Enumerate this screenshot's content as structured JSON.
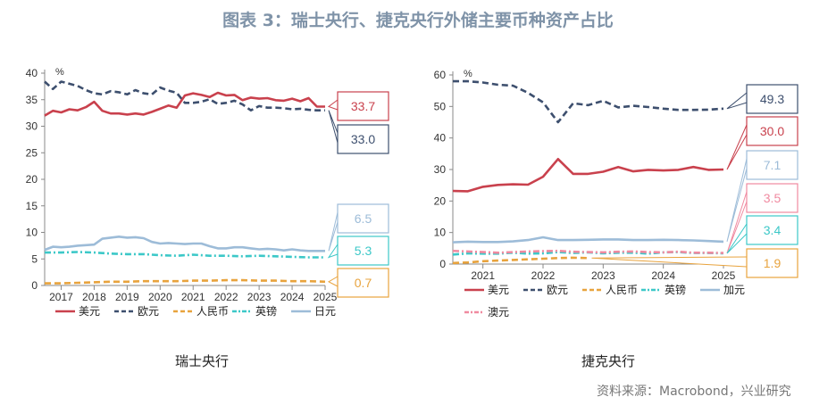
{
  "page": {
    "title": "图表 3：瑞士央行、捷克央行外储主要币种资产占比",
    "source": "资料来源：Macrobond，兴业研究"
  },
  "chart_data": [
    {
      "type": "line",
      "panel_title": "瑞士央行",
      "unit": "%",
      "ylim": [
        0,
        40
      ],
      "yticks": [
        0,
        5,
        10,
        15,
        20,
        25,
        30,
        35,
        40
      ],
      "xlim": [
        2016.5,
        2025.0
      ],
      "xticks": [
        "2017",
        "2018",
        "2019",
        "2020",
        "2021",
        "2022",
        "2023",
        "2024",
        "2025"
      ],
      "series": [
        {
          "name": "美元",
          "color": "#c9414d",
          "style": "solid",
          "x": [
            2016.5,
            2016.75,
            2017.0,
            2017.25,
            2017.5,
            2017.75,
            2018.0,
            2018.25,
            2018.5,
            2018.75,
            2019.0,
            2019.25,
            2019.5,
            2019.75,
            2020.0,
            2020.25,
            2020.5,
            2020.75,
            2021.0,
            2021.25,
            2021.5,
            2021.75,
            2022.0,
            2022.25,
            2022.5,
            2022.75,
            2023.0,
            2023.25,
            2023.5,
            2023.75,
            2024.0,
            2024.25,
            2024.5,
            2024.75,
            2025.0
          ],
          "y": [
            32.0,
            32.9,
            32.6,
            33.2,
            33.0,
            33.6,
            34.6,
            32.9,
            32.4,
            32.4,
            32.2,
            32.4,
            32.2,
            32.7,
            33.3,
            33.9,
            33.5,
            35.8,
            36.2,
            35.9,
            35.5,
            36.3,
            35.8,
            35.9,
            34.9,
            35.4,
            35.2,
            35.3,
            34.9,
            34.8,
            35.2,
            34.7,
            35.3,
            33.7,
            33.7
          ]
        },
        {
          "name": "欧元",
          "color": "#3d4f6e",
          "style": "dash",
          "x": [
            2016.5,
            2016.75,
            2017.0,
            2017.25,
            2017.5,
            2017.75,
            2018.0,
            2018.25,
            2018.5,
            2018.75,
            2019.0,
            2019.25,
            2019.5,
            2019.75,
            2020.0,
            2020.25,
            2020.5,
            2020.75,
            2021.0,
            2021.25,
            2021.5,
            2021.75,
            2022.0,
            2022.25,
            2022.5,
            2022.75,
            2023.0,
            2023.25,
            2023.5,
            2023.75,
            2024.0,
            2024.25,
            2024.5,
            2024.75,
            2025.0
          ],
          "y": [
            38.4,
            37.0,
            38.4,
            38.0,
            37.6,
            36.8,
            36.2,
            36.0,
            36.6,
            36.4,
            36.0,
            36.8,
            36.2,
            36.0,
            37.3,
            36.7,
            36.3,
            34.4,
            34.4,
            34.6,
            35.1,
            34.2,
            34.4,
            34.8,
            34.1,
            33.0,
            33.8,
            33.5,
            33.5,
            33.4,
            33.2,
            33.3,
            33.1,
            33.0,
            33.0
          ]
        },
        {
          "name": "人民币",
          "color": "#e8a33d",
          "style": "dash",
          "x": [
            2016.5,
            2017.0,
            2017.5,
            2018.0,
            2018.5,
            2019.0,
            2019.5,
            2020.0,
            2020.5,
            2021.0,
            2021.5,
            2022.0,
            2022.5,
            2023.0,
            2023.5,
            2024.0,
            2024.5,
            2025.0
          ],
          "y": [
            0.4,
            0.4,
            0.5,
            0.6,
            0.7,
            0.7,
            0.8,
            0.8,
            0.8,
            0.9,
            0.9,
            1.0,
            1.0,
            0.9,
            0.9,
            0.8,
            0.8,
            0.7
          ]
        },
        {
          "name": "英镑",
          "color": "#3cc8c8",
          "style": "dashdot",
          "x": [
            2016.5,
            2017.0,
            2017.5,
            2018.0,
            2018.5,
            2019.0,
            2019.5,
            2020.0,
            2020.5,
            2021.0,
            2021.5,
            2022.0,
            2022.5,
            2023.0,
            2023.5,
            2024.0,
            2024.5,
            2025.0
          ],
          "y": [
            6.2,
            6.2,
            6.3,
            6.2,
            6.0,
            5.9,
            5.9,
            5.7,
            5.6,
            5.8,
            5.6,
            5.6,
            5.5,
            5.6,
            5.5,
            5.4,
            5.3,
            5.3
          ]
        },
        {
          "name": "日元",
          "color": "#9dbcd8",
          "style": "solid",
          "x": [
            2016.5,
            2016.75,
            2017.0,
            2017.25,
            2017.5,
            2017.75,
            2018.0,
            2018.25,
            2018.5,
            2018.75,
            2019.0,
            2019.25,
            2019.5,
            2019.75,
            2020.0,
            2020.25,
            2020.5,
            2020.75,
            2021.0,
            2021.25,
            2021.5,
            2021.75,
            2022.0,
            2022.25,
            2022.5,
            2022.75,
            2023.0,
            2023.25,
            2023.5,
            2023.75,
            2024.0,
            2024.25,
            2024.5,
            2024.75,
            2025.0
          ],
          "y": [
            6.7,
            7.3,
            7.2,
            7.3,
            7.5,
            7.6,
            7.7,
            8.8,
            9.0,
            9.2,
            9.0,
            9.1,
            8.9,
            8.2,
            7.9,
            8.0,
            7.9,
            7.8,
            7.9,
            7.9,
            7.4,
            7.0,
            7.0,
            7.2,
            7.2,
            7.0,
            6.8,
            6.9,
            6.8,
            6.6,
            6.8,
            6.6,
            6.5,
            6.5,
            6.5
          ]
        }
      ],
      "end_labels": [
        {
          "series": "美元",
          "value": "33.7"
        },
        {
          "series": "欧元",
          "value": "33.0"
        },
        {
          "series": "日元",
          "value": "6.5"
        },
        {
          "series": "英镑",
          "value": "5.3"
        },
        {
          "series": "人民币",
          "value": "0.7"
        }
      ]
    },
    {
      "type": "line",
      "panel_title": "捷克央行",
      "unit": "%",
      "ylim": [
        0,
        60
      ],
      "yticks": [
        0,
        10,
        20,
        30,
        40,
        50,
        60
      ],
      "xlim": [
        2020.5,
        2025.0
      ],
      "xticks": [
        "2021",
        "2022",
        "2023",
        "2024",
        "2025"
      ],
      "series": [
        {
          "name": "美元",
          "color": "#c9414d",
          "style": "solid",
          "x": [
            2020.5,
            2020.75,
            2021.0,
            2021.25,
            2021.5,
            2021.75,
            2022.0,
            2022.25,
            2022.5,
            2022.75,
            2023.0,
            2023.25,
            2023.5,
            2023.75,
            2024.0,
            2024.25,
            2024.5,
            2024.75,
            2025.0
          ],
          "y": [
            23.2,
            23.1,
            24.5,
            25.1,
            25.3,
            25.2,
            27.7,
            33.3,
            28.6,
            28.6,
            29.3,
            30.8,
            29.4,
            29.9,
            29.7,
            29.9,
            30.8,
            29.9,
            30.0
          ]
        },
        {
          "name": "欧元",
          "color": "#3d4f6e",
          "style": "dash",
          "x": [
            2020.5,
            2020.75,
            2021.0,
            2021.25,
            2021.5,
            2021.75,
            2022.0,
            2022.25,
            2022.5,
            2022.75,
            2023.0,
            2023.25,
            2023.5,
            2023.75,
            2024.0,
            2024.25,
            2024.5,
            2024.75,
            2025.0
          ],
          "y": [
            58.0,
            58.0,
            57.6,
            56.9,
            56.6,
            54.3,
            51.3,
            45.0,
            51.0,
            50.4,
            51.8,
            49.7,
            50.2,
            49.8,
            49.3,
            48.9,
            48.9,
            49.0,
            49.3
          ]
        },
        {
          "name": "人民币",
          "color": "#e8a33d",
          "style": "dash",
          "x": [
            2020.5,
            2020.75,
            2021.0,
            2021.25,
            2021.5,
            2021.75,
            2022.0,
            2022.25,
            2022.5,
            2022.75
          ],
          "y": [
            0.3,
            0.5,
            0.9,
            1.1,
            1.3,
            1.5,
            1.7,
            1.9,
            2.0,
            1.9
          ]
        },
        {
          "name": "英镑",
          "color": "#3cc8c8",
          "style": "dashdot",
          "x": [
            2020.5,
            2020.75,
            2021.0,
            2021.25,
            2021.5,
            2021.75,
            2022.0,
            2022.25,
            2022.5,
            2022.75,
            2023.0,
            2023.25,
            2023.5,
            2023.75,
            2024.0,
            2024.25,
            2024.5,
            2024.75,
            2025.0
          ],
          "y": [
            3.0,
            3.4,
            3.3,
            3.3,
            3.6,
            3.3,
            3.4,
            3.8,
            3.5,
            3.7,
            3.4,
            3.6,
            3.6,
            3.3,
            3.7,
            3.8,
            3.5,
            3.5,
            3.4
          ]
        },
        {
          "name": "加元",
          "color": "#9dbcd8",
          "style": "solid",
          "x": [
            2020.5,
            2020.75,
            2021.0,
            2021.25,
            2021.5,
            2021.75,
            2022.0,
            2022.25,
            2022.5,
            2022.75,
            2023.0,
            2023.25,
            2023.5,
            2023.75,
            2024.0,
            2024.25,
            2024.5,
            2024.75,
            2025.0
          ],
          "y": [
            6.9,
            7.1,
            7.0,
            7.0,
            7.2,
            7.6,
            8.5,
            7.6,
            7.6,
            7.7,
            7.8,
            7.8,
            7.6,
            7.6,
            7.7,
            7.6,
            7.5,
            7.3,
            7.1
          ]
        },
        {
          "name": "澳元",
          "color": "#f08aa0",
          "style": "dashdot",
          "x": [
            2020.5,
            2020.75,
            2021.0,
            2021.25,
            2021.5,
            2021.75,
            2022.0,
            2022.25,
            2022.5,
            2022.75,
            2023.0,
            2023.25,
            2023.5,
            2023.75,
            2024.0,
            2024.25,
            2024.5,
            2024.75,
            2025.0
          ],
          "y": [
            4.2,
            4.0,
            3.8,
            3.6,
            3.8,
            4.0,
            4.1,
            4.2,
            3.9,
            3.8,
            3.7,
            3.9,
            4.0,
            3.8,
            3.7,
            3.9,
            3.6,
            3.6,
            3.5
          ]
        }
      ],
      "end_labels": [
        {
          "series": "欧元",
          "value": "49.3"
        },
        {
          "series": "美元",
          "value": "30.0"
        },
        {
          "series": "加元",
          "value": "7.1"
        },
        {
          "series": "澳元",
          "value": "3.5"
        },
        {
          "series": "英镑",
          "value": "3.4"
        },
        {
          "series": "人民币",
          "value": "1.9"
        }
      ]
    }
  ]
}
